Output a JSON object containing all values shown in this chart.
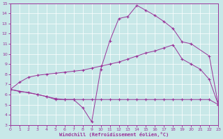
{
  "xlabel": "Windchill (Refroidissement éolien,°C)",
  "bg_color": "#c8e8e8",
  "line_color": "#993399",
  "xlim": [
    0,
    23
  ],
  "ylim": [
    3,
    15
  ],
  "xticks": [
    0,
    1,
    2,
    3,
    4,
    5,
    6,
    7,
    8,
    9,
    10,
    11,
    12,
    13,
    14,
    15,
    16,
    17,
    18,
    19,
    20,
    21,
    22,
    23
  ],
  "yticks": [
    3,
    4,
    5,
    6,
    7,
    8,
    9,
    10,
    11,
    12,
    13,
    14,
    15
  ],
  "curve_bottom_x": [
    0,
    1,
    2,
    3,
    4,
    5,
    6,
    7,
    8,
    9,
    10,
    11,
    12,
    13,
    14,
    15,
    16,
    17,
    18,
    19,
    20,
    21,
    22,
    23
  ],
  "curve_bottom_y": [
    6.5,
    6.3,
    6.2,
    6.0,
    5.8,
    5.6,
    5.5,
    5.5,
    5.5,
    5.5,
    5.5,
    5.5,
    5.5,
    5.5,
    5.5,
    5.5,
    5.5,
    5.5,
    5.5,
    5.5,
    5.5,
    5.5,
    5.5,
    5.0
  ],
  "curve_mid_x": [
    0,
    1,
    2,
    3,
    4,
    5,
    6,
    7,
    8,
    9,
    10,
    11,
    12,
    13,
    14,
    15,
    16,
    17,
    18,
    19,
    20,
    21,
    22,
    23
  ],
  "curve_mid_y": [
    6.5,
    7.2,
    7.7,
    7.9,
    8.0,
    8.1,
    8.2,
    8.3,
    8.4,
    8.6,
    8.8,
    9.0,
    9.2,
    9.5,
    9.8,
    10.1,
    10.3,
    10.6,
    10.9,
    9.5,
    9.0,
    8.5,
    7.5,
    5.0
  ],
  "curve_top_x": [
    0,
    3,
    4,
    5,
    6,
    7,
    8,
    9,
    10,
    11,
    12,
    13,
    14,
    15,
    16,
    17,
    18,
    19,
    20,
    22,
    23
  ],
  "curve_top_y": [
    6.5,
    6.0,
    5.8,
    5.5,
    5.5,
    5.5,
    4.7,
    3.3,
    8.5,
    11.3,
    13.5,
    13.7,
    14.8,
    14.3,
    13.8,
    13.2,
    12.5,
    11.2,
    11.0,
    9.8,
    5.0
  ]
}
